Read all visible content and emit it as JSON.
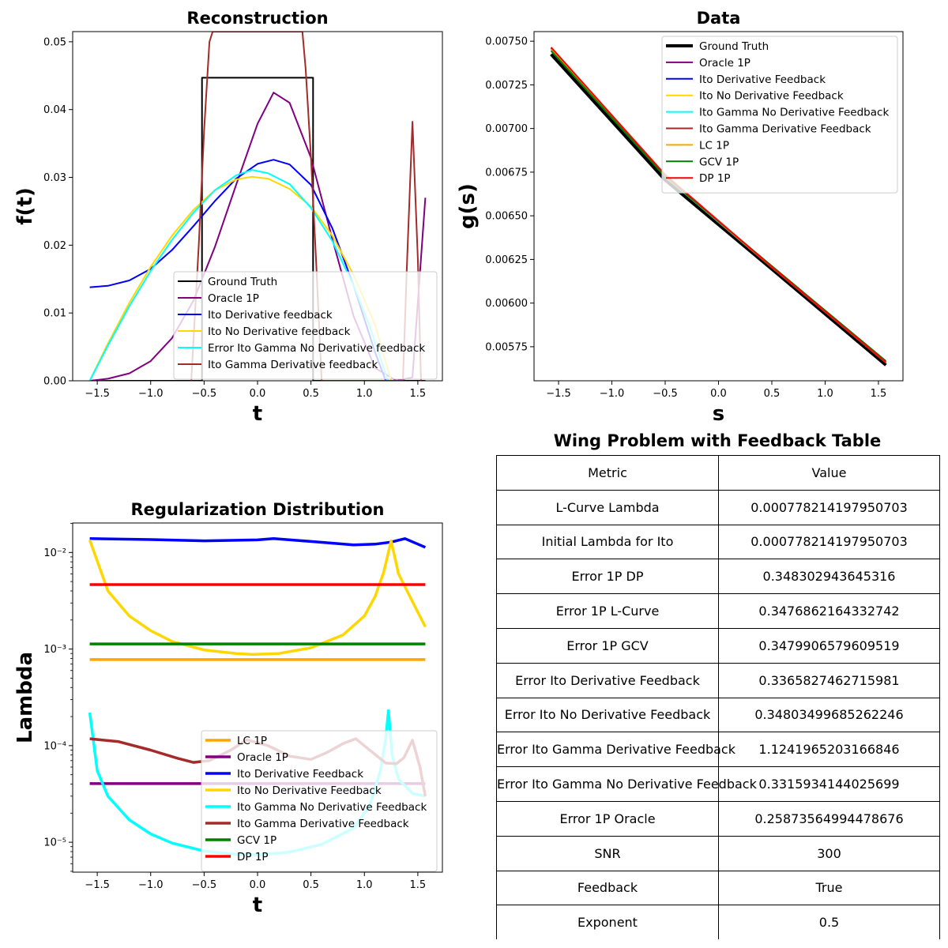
{
  "chart_data": [
    {
      "type": "line",
      "title": "Reconstruction",
      "xlabel": "t",
      "ylabel": "f(t)",
      "xlim": [
        -1.73,
        1.73
      ],
      "ylim": [
        0,
        0.0515
      ],
      "xticks": [
        "−1.5",
        "−1.0",
        "−0.5",
        "0.0",
        "0.5",
        "1.0",
        "1.5"
      ],
      "yticks": [
        "0.00",
        "0.01",
        "0.02",
        "0.03",
        "0.04",
        "0.05"
      ],
      "legend_position": "lower-right",
      "series": [
        {
          "name": "Ground Truth",
          "color": "#000000",
          "x": [
            -1.57,
            -0.52,
            -0.52,
            0.52,
            0.52,
            1.57
          ],
          "y": [
            0,
            0,
            0.0447,
            0.0447,
            0,
            0
          ]
        },
        {
          "name": "Oracle 1P",
          "color": "#800080",
          "x": [
            -1.57,
            -1.4,
            -1.2,
            -1.0,
            -0.8,
            -0.6,
            -0.4,
            -0.2,
            0.0,
            0.15,
            0.3,
            0.5,
            0.7,
            0.9,
            1.1,
            1.3,
            1.45,
            1.57
          ],
          "y": [
            0,
            0.0003,
            0.0011,
            0.0029,
            0.0063,
            0.0118,
            0.0197,
            0.0289,
            0.0379,
            0.0425,
            0.041,
            0.0329,
            0.0209,
            0.0095,
            0.0019,
            0,
            0.0005,
            0.027
          ]
        },
        {
          "name": "Ito Derivative feedback",
          "color": "#0000ff",
          "x": [
            -1.57,
            -1.4,
            -1.2,
            -1.0,
            -0.8,
            -0.6,
            -0.4,
            -0.2,
            0.0,
            0.15,
            0.3,
            0.5,
            0.7,
            0.9,
            1.1,
            1.2
          ],
          "y": [
            0.0138,
            0.014,
            0.0148,
            0.0165,
            0.0193,
            0.0228,
            0.0265,
            0.0298,
            0.032,
            0.0326,
            0.0319,
            0.0289,
            0.0225,
            0.014,
            0.0042,
            0
          ]
        },
        {
          "name": "Ito No Derivative feedback",
          "color": "#ffd700",
          "x": [
            -1.57,
            -1.4,
            -1.2,
            -1.0,
            -0.8,
            -0.6,
            -0.4,
            -0.2,
            -0.05,
            0.1,
            0.3,
            0.5,
            0.7,
            0.9,
            1.1,
            1.25
          ],
          "y": [
            0,
            0.0055,
            0.0115,
            0.0168,
            0.0214,
            0.0252,
            0.0281,
            0.0297,
            0.0301,
            0.0298,
            0.0283,
            0.0257,
            0.0214,
            0.0156,
            0.0083,
            0
          ]
        },
        {
          "name": "Error Ito Gamma No Derivative feedback",
          "color": "#00ffff",
          "x": [
            -1.57,
            -1.4,
            -1.2,
            -1.0,
            -0.8,
            -0.6,
            -0.4,
            -0.2,
            -0.05,
            0.1,
            0.3,
            0.5,
            0.7,
            0.9,
            1.05,
            1.22
          ],
          "y": [
            0,
            0.0052,
            0.011,
            0.0162,
            0.0208,
            0.0248,
            0.0281,
            0.0303,
            0.0311,
            0.0306,
            0.029,
            0.0255,
            0.0206,
            0.014,
            0.008,
            0
          ]
        },
        {
          "name": "Ito Gamma Derivative feedback",
          "color": "#a52a2a",
          "x": [
            -0.62,
            -0.55,
            -0.5,
            -0.45,
            -0.42,
            0.42,
            0.45,
            0.5,
            0.55,
            0.6,
            1.36,
            1.4,
            1.45,
            1.5,
            1.53
          ],
          "y": [
            0,
            0.02,
            0.037,
            0.05,
            0.0515,
            0.0515,
            0.046,
            0.033,
            0.017,
            0,
            0,
            0.018,
            0.0382,
            0.018,
            0
          ]
        }
      ]
    },
    {
      "type": "line",
      "title": "Data",
      "xlabel": "s",
      "ylabel": "g(s)",
      "xlim": [
        -1.73,
        1.73
      ],
      "ylim": [
        0.005555,
        0.007555
      ],
      "xticks": [
        "−1.5",
        "−1.0",
        "−0.5",
        "0.0",
        "0.5",
        "1.0",
        "1.5"
      ],
      "yticks": [
        "0.00575",
        "0.00600",
        "0.00625",
        "0.00650",
        "0.00675",
        "0.00700",
        "0.00725",
        "0.00750"
      ],
      "legend_position": "upper-right",
      "series": [
        {
          "name": "Ground Truth",
          "color": "#000000",
          "x": [
            -1.57,
            -0.5,
            0.5,
            1.57
          ],
          "y": [
            0.007425,
            0.006705,
            0.006195,
            0.005645
          ]
        },
        {
          "name": "Oracle 1P",
          "color": "#800080",
          "x": [
            -1.57,
            -0.5,
            0.5,
            1.57
          ],
          "y": [
            0.00746,
            0.00673,
            0.006205,
            0.00566
          ]
        },
        {
          "name": "Ito Derivative Feedback",
          "color": "#0000ff",
          "x": [
            -1.57,
            -0.5,
            0.5,
            1.57
          ],
          "y": [
            0.00746,
            0.00673,
            0.006205,
            0.00566
          ]
        },
        {
          "name": "Ito No Derivative Feedback",
          "color": "#ffd700",
          "x": [
            -1.57,
            -0.5,
            0.5,
            1.57
          ],
          "y": [
            0.007455,
            0.006725,
            0.006205,
            0.00566
          ]
        },
        {
          "name": "Ito Gamma No Derivative Feedback",
          "color": "#00ffff",
          "x": [
            -1.57,
            -0.5,
            0.5,
            1.57
          ],
          "y": [
            0.007455,
            0.006725,
            0.006205,
            0.00566
          ]
        },
        {
          "name": "Ito Gamma Derivative Feedback",
          "color": "#a52a2a",
          "x": [
            -1.57,
            -0.5,
            0.5,
            1.57
          ],
          "y": [
            0.00746,
            0.00673,
            0.006205,
            0.00566
          ]
        },
        {
          "name": "LC 1P",
          "color": "#ffa500",
          "x": [
            -1.57,
            -0.5,
            0.5,
            1.57
          ],
          "y": [
            0.007455,
            0.006728,
            0.006208,
            0.005662
          ]
        },
        {
          "name": "GCV 1P",
          "color": "#008000",
          "x": [
            -1.57,
            -0.5,
            0.5,
            1.57
          ],
          "y": [
            0.007445,
            0.006725,
            0.006212,
            0.005668
          ]
        },
        {
          "name": "DP 1P",
          "color": "#ff0000",
          "x": [
            -1.57,
            -0.5,
            0.5,
            1.57
          ],
          "y": [
            0.007465,
            0.006735,
            0.006208,
            0.005662
          ]
        }
      ]
    },
    {
      "type": "line",
      "title": "Regularization Distribution",
      "xlabel": "t",
      "ylabel": "Lambda",
      "xlim": [
        -1.73,
        1.73
      ],
      "ylim": [
        4.9e-06,
        0.0202
      ],
      "yscale": "log",
      "xticks": [
        "−1.5",
        "−1.0",
        "−0.5",
        "0.0",
        "0.5",
        "1.0",
        "1.5"
      ],
      "yticks": [
        "10⁻⁵",
        "10⁻⁴",
        "10⁻³",
        "10⁻²"
      ],
      "legend_position": "lower-right",
      "series": [
        {
          "name": "LC 1P",
          "color": "#ffa500",
          "x": [
            -1.57,
            1.57
          ],
          "y": [
            0.000778,
            0.000778
          ]
        },
        {
          "name": "Oracle 1P",
          "color": "#800080",
          "x": [
            -1.57,
            1.57
          ],
          "y": [
            4.05e-05,
            4.05e-05
          ]
        },
        {
          "name": "Ito Derivative Feedback",
          "color": "#0000ff",
          "x": [
            -1.57,
            -1.0,
            -0.5,
            0.0,
            0.15,
            0.5,
            0.9,
            1.1,
            1.25,
            1.38,
            1.57
          ],
          "y": [
            0.0139,
            0.0136,
            0.0132,
            0.0135,
            0.0139,
            0.013,
            0.012,
            0.0122,
            0.0128,
            0.0139,
            0.0113
          ]
        },
        {
          "name": "Ito No Derivative Feedback",
          "color": "#ffd700",
          "x": [
            -1.57,
            -1.4,
            -1.2,
            -1.0,
            -0.8,
            -0.5,
            -0.2,
            -0.05,
            0.2,
            0.5,
            0.8,
            1.0,
            1.1,
            1.18,
            1.25,
            1.32,
            1.45,
            1.57
          ],
          "y": [
            0.0135,
            0.004,
            0.0022,
            0.00155,
            0.0012,
            0.00098,
            0.0009,
            0.00088,
            0.0009,
            0.00103,
            0.0014,
            0.0022,
            0.0035,
            0.0062,
            0.0132,
            0.006,
            0.0031,
            0.0017
          ]
        },
        {
          "name": "Ito Gamma No Derivative Feedback",
          "color": "#00ffff",
          "x": [
            -1.57,
            -1.5,
            -1.4,
            -1.2,
            -1.0,
            -0.8,
            -0.5,
            -0.2,
            0.0,
            0.3,
            0.6,
            0.9,
            1.05,
            1.15,
            1.2,
            1.225,
            1.26,
            1.32,
            1.45,
            1.57
          ],
          "y": [
            0.00022,
            5.5e-05,
            3e-05,
            1.7e-05,
            1.22e-05,
            9.8e-06,
            8.1e-06,
            7.5e-06,
            7.4e-06,
            7.9e-06,
            9.5e-06,
            1.4e-05,
            2.4e-05,
            5.5e-05,
            0.00012,
            0.00023,
            8e-05,
            4.5e-05,
            3.2e-05,
            3e-05
          ]
        },
        {
          "name": "Ito Gamma Derivative Feedback",
          "color": "#a52a2a",
          "x": [
            -1.57,
            -1.3,
            -1.0,
            -0.75,
            -0.6,
            -0.45,
            -0.25,
            -0.1,
            0.1,
            0.3,
            0.5,
            0.65,
            0.8,
            0.92,
            1.05,
            1.2,
            1.3,
            1.37,
            1.45,
            1.52,
            1.57
          ],
          "y": [
            0.000118,
            0.00011,
            9e-05,
            7.4e-05,
            6.7e-05,
            7e-05,
            9e-05,
            0.000115,
            0.0001,
            7.8e-05,
            7.2e-05,
            8.5e-05,
            0.000105,
            0.000118,
            9e-05,
            6.6e-05,
            6.5e-05,
            7.5e-05,
            0.000114,
            6e-05,
            3e-05
          ]
        },
        {
          "name": "GCV 1P",
          "color": "#008000",
          "x": [
            -1.57,
            1.57
          ],
          "y": [
            0.00113,
            0.00113
          ]
        },
        {
          "name": "DP 1P",
          "color": "#ff0000",
          "x": [
            -1.57,
            1.57
          ],
          "y": [
            0.00465,
            0.00465
          ]
        }
      ]
    },
    {
      "type": "table",
      "title": "Wing Problem with Feedback Table",
      "columns": [
        "Metric",
        "Value"
      ],
      "rows": [
        [
          "L-Curve Lambda",
          "0.000778214197950703"
        ],
        [
          "Initial Lambda for Ito",
          "0.000778214197950703"
        ],
        [
          "Error 1P DP",
          "0.348302943645316"
        ],
        [
          "Error 1P L-Curve",
          "0.3476862164332742"
        ],
        [
          "Error 1P GCV",
          "0.3479906579609519"
        ],
        [
          "Error Ito Derivative Feedback",
          "0.3365827462715981"
        ],
        [
          "Error Ito No Derivative Feedback",
          "0.34803499685262246"
        ],
        [
          "Error Ito Gamma Derivative Feedback",
          "1.1241965203166846"
        ],
        [
          "Error Ito Gamma No Derivative Feedback",
          "0.3315934144025699"
        ],
        [
          "Error 1P Oracle",
          "0.25873564994478676"
        ],
        [
          "SNR",
          "300"
        ],
        [
          "Feedback",
          "True"
        ],
        [
          "Exponent",
          "0.5"
        ]
      ]
    }
  ]
}
